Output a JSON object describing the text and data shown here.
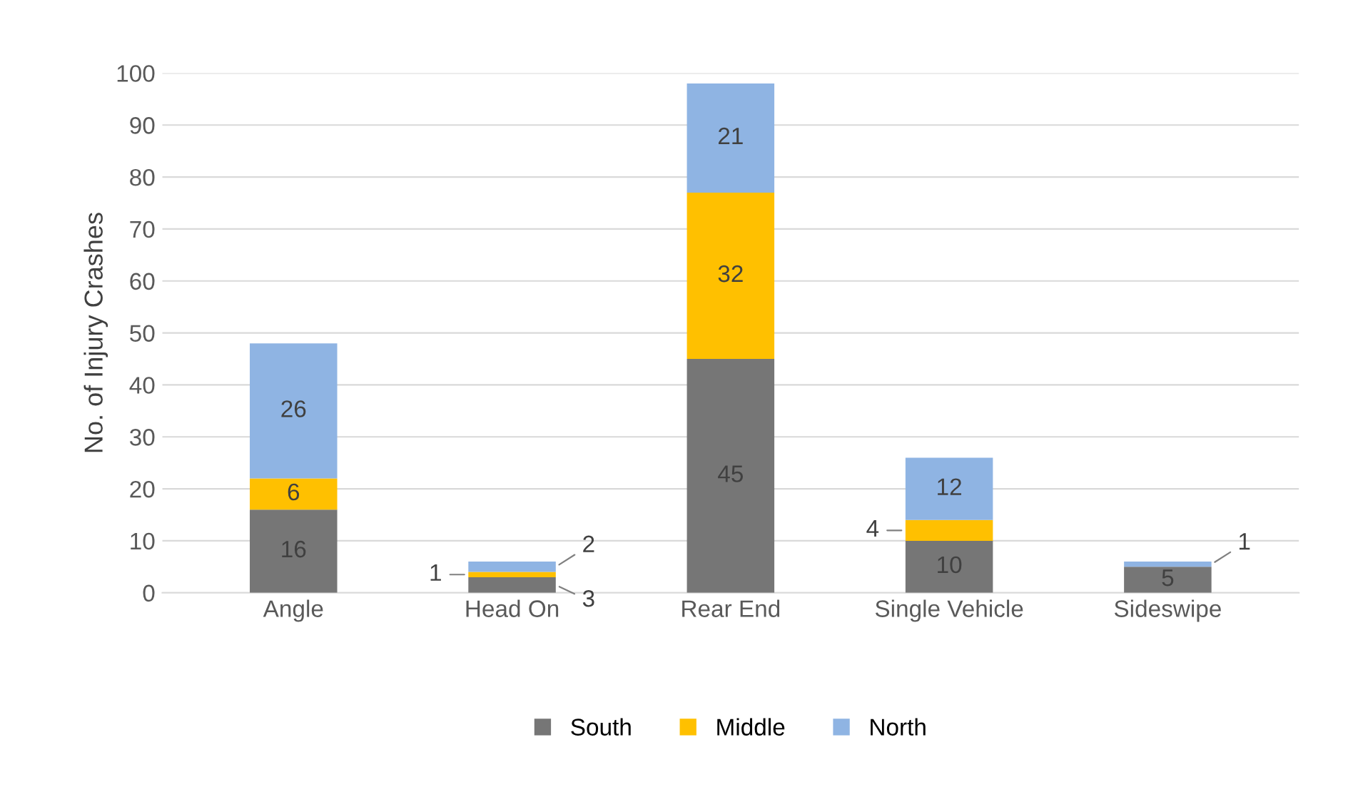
{
  "chart_data": {
    "type": "bar",
    "stacked": true,
    "categories": [
      "Angle",
      "Head On",
      "Rear End",
      "Single Vehicle",
      "Sideswipe"
    ],
    "series": [
      {
        "name": "South",
        "color": "#767676",
        "values": [
          16,
          3,
          45,
          10,
          5
        ]
      },
      {
        "name": "Middle",
        "color": "#ffc000",
        "values": [
          6,
          1,
          32,
          4,
          null
        ]
      },
      {
        "name": "North",
        "color": "#8fb4e3",
        "values": [
          26,
          2,
          21,
          12,
          1
        ]
      }
    ],
    "ylabel": "No. of Injury Crashes",
    "ylim": [
      0,
      100
    ],
    "yticks": [
      0,
      10,
      20,
      30,
      40,
      50,
      60,
      70,
      80,
      90,
      100
    ],
    "grid": "y",
    "legend": "bottom",
    "data_labels": true
  }
}
